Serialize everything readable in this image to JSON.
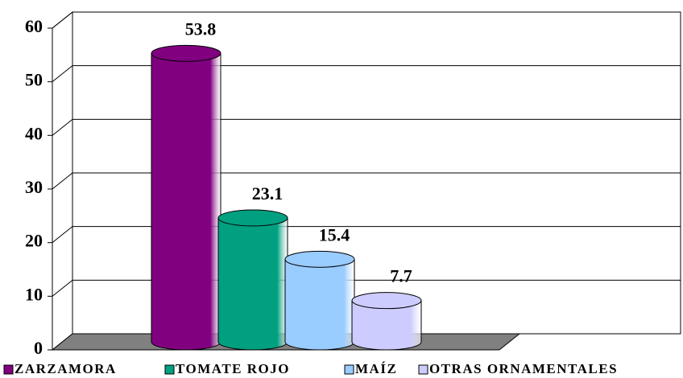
{
  "chart_data": {
    "type": "bar",
    "categories": [
      "ZARZAMORA",
      "TOMATE ROJO",
      "MAÍZ",
      "OTRAS ORNAMENTALES"
    ],
    "values": [
      53.8,
      23.1,
      15.4,
      7.7
    ],
    "colors": [
      "#800080",
      "#00a080",
      "#99ccff",
      "#ccccff"
    ],
    "ylim": [
      0,
      60
    ],
    "yticks": [
      0,
      10,
      20,
      30,
      40,
      50,
      60
    ],
    "grid": true,
    "legend": "bottom"
  }
}
